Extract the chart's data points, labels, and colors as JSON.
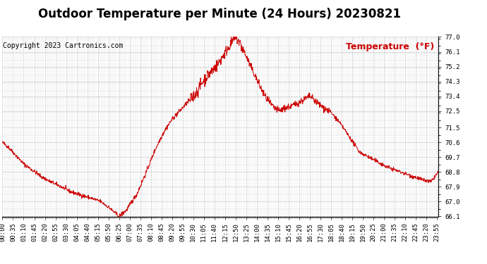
{
  "title": "Outdoor Temperature per Minute (24 Hours) 20230821",
  "copyright_text": "Copyright 2023 Cartronics.com",
  "legend_label": "Temperature  (°F)",
  "line_color": "#cc0000",
  "background_color": "#ffffff",
  "grid_color": "#b0b0b0",
  "ylim": [
    66.1,
    77.0
  ],
  "yticks": [
    66.1,
    67.0,
    67.9,
    68.8,
    69.7,
    70.6,
    71.5,
    72.5,
    73.4,
    74.3,
    75.2,
    76.1,
    77.0
  ],
  "title_fontsize": 12,
  "axis_fontsize": 6.5,
  "legend_fontsize": 9,
  "copyright_fontsize": 7
}
